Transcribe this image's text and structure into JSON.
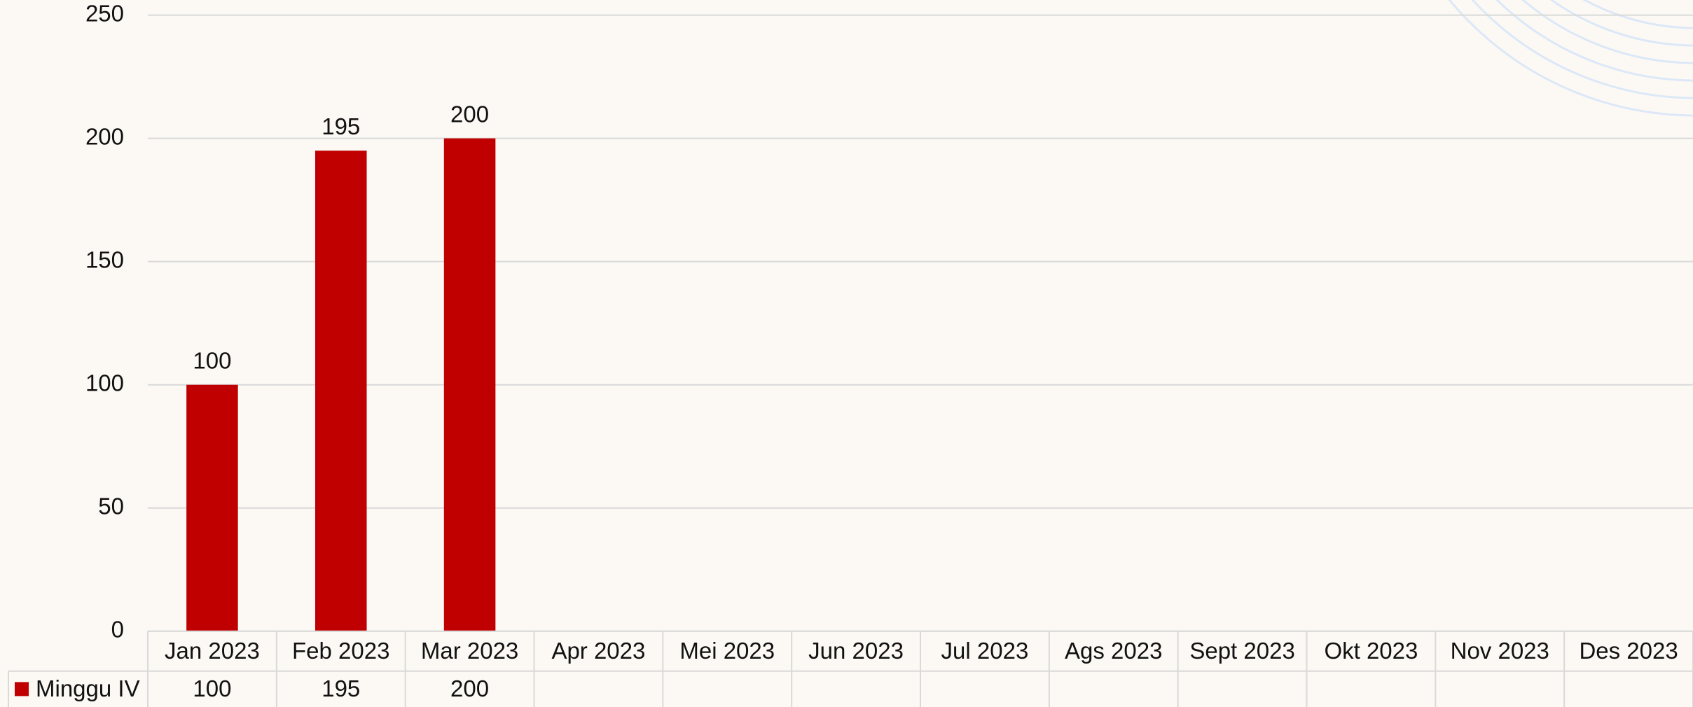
{
  "chart_data": {
    "type": "bar",
    "categories": [
      "Jan 2023",
      "Feb 2023",
      "Mar 2023",
      "Apr 2023",
      "Mei 2023",
      "Jun 2023",
      "Jul 2023",
      "Ags 2023",
      "Sept 2023",
      "Okt 2023",
      "Nov 2023",
      "Des 2023"
    ],
    "series": [
      {
        "name": "Minggu IV",
        "color": "#c00000",
        "values": [
          100,
          195,
          200,
          null,
          null,
          null,
          null,
          null,
          null,
          null,
          null,
          null
        ]
      }
    ],
    "ylim": [
      0,
      250
    ],
    "yticks": [
      0,
      50,
      100,
      150,
      200,
      250
    ],
    "grid": true,
    "data_table": true,
    "data_labels": true
  }
}
